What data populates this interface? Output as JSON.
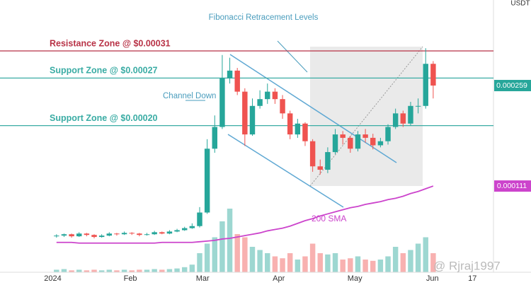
{
  "chart_data": {
    "type": "candlestick",
    "currency": "USDT",
    "annotations": {
      "fib": "Fibonacci Retracement Levels",
      "channel": "Channel Down",
      "sma": "200 SMA",
      "watermark": "@ Rjraj1997"
    },
    "categories": [
      null,
      null,
      null,
      null,
      null,
      null,
      null,
      null,
      null,
      null,
      null,
      null,
      null,
      null,
      null,
      null,
      null,
      null,
      null,
      null,
      null,
      null,
      null,
      null,
      null,
      null,
      null,
      null,
      null,
      null,
      null,
      null,
      null,
      null,
      null,
      null,
      null,
      null,
      null,
      null,
      null,
      null,
      null,
      null,
      null,
      null,
      null,
      null,
      null,
      null,
      null
    ],
    "xlim": [
      -7.5,
      58
    ],
    "xticks": [
      {
        "value": -0.5,
        "label": "2024"
      },
      {
        "value": 9.8,
        "label": "Feb"
      },
      {
        "value": 19.4,
        "label": "Mar"
      },
      {
        "value": 29.5,
        "label": "Apr"
      },
      {
        "value": 39.6,
        "label": "May"
      },
      {
        "value": 49.9,
        "label": "Jun"
      },
      {
        "value": 55.2,
        "label": "17"
      }
    ],
    "ylim": [
      -1.6e-05,
      0.000385
    ],
    "up_color": "#26a69a",
    "down_color": "#ef5350",
    "open": [
      3.7e-05,
      3.8e-05,
      4e-05,
      3.7e-05,
      4.1e-05,
      3.9e-05,
      3.6e-05,
      3.8e-05,
      4.1e-05,
      4e-05,
      4.2e-05,
      4.1e-05,
      3.9e-05,
      4e-05,
      4.3e-05,
      4.1e-05,
      4.4e-05,
      4.6e-05,
      4.9e-05,
      5.2e-05,
      7.2e-05,
      0.000166,
      0.000198,
      0.00027,
      0.000281,
      0.00025,
      0.000187,
      0.000229,
      0.000239,
      0.00025,
      0.000239,
      0.000218,
      0.000187,
      0.000203,
      0.000177,
      0.00014,
      0.000135,
      0.000161,
      0.000187,
      0.000182,
      0.000166,
      0.000187,
      0.000182,
      0.000171,
      0.000177,
      0.000198,
      0.000218,
      0.000203,
      0.000229,
      0.000229,
      0.000291
    ],
    "high": [
      4e-05,
      4.1e-05,
      4.1e-05,
      4.3e-05,
      4.2e-05,
      4e-05,
      4e-05,
      4.3e-05,
      4.2e-05,
      4.4e-05,
      4.3e-05,
      4.2e-05,
      4.2e-05,
      4.5e-05,
      4.4e-05,
      4.6e-05,
      4.8e-05,
      5.1e-05,
      5.6e-05,
      8e-05,
      0.00018,
      0.000215,
      0.000304,
      0.0003,
      0.000285,
      0.000255,
      0.00024,
      0.000252,
      0.000262,
      0.000255,
      0.000245,
      0.000222,
      0.00021,
      0.000205,
      0.00018,
      0.00015,
      0.000168,
      0.000195,
      0.000192,
      0.000185,
      0.000192,
      0.000195,
      0.000188,
      0.000182,
      0.000202,
      0.000225,
      0.000222,
      0.000235,
      0.00024,
      0.000314,
      0.000295
    ],
    "low": [
      3.5e-05,
      3.6e-05,
      3.5e-05,
      3.6e-05,
      3.7e-05,
      3.4e-05,
      3.5e-05,
      3.7e-05,
      3.8e-05,
      3.9e-05,
      3.9e-05,
      3.7e-05,
      3.8e-05,
      3.9e-05,
      4e-05,
      4e-05,
      4.3e-05,
      4.5e-05,
      4.8e-05,
      5e-05,
      7e-05,
      0.00016,
      0.000195,
      0.000262,
      0.000245,
      0.00017,
      0.000185,
      0.000225,
      0.000232,
      0.000232,
      0.00021,
      0.00018,
      0.000182,
      0.00017,
      0.000132,
      0.000128,
      0.00013,
      0.000158,
      0.000172,
      0.00016,
      0.000162,
      0.000175,
      0.000165,
      0.000168,
      0.000172,
      0.000195,
      0.000198,
      0.0002,
      0.000218,
      0.000225,
      0.00024
    ],
    "close": [
      3.8e-05,
      4e-05,
      3.7e-05,
      4.1e-05,
      3.9e-05,
      3.6e-05,
      3.8e-05,
      4.1e-05,
      4e-05,
      4.2e-05,
      4.1e-05,
      3.9e-05,
      4e-05,
      4.3e-05,
      4.1e-05,
      4.4e-05,
      4.6e-05,
      4.9e-05,
      5.2e-05,
      7.2e-05,
      0.000166,
      0.000198,
      0.00027,
      0.000281,
      0.00025,
      0.000187,
      0.000229,
      0.000239,
      0.00025,
      0.000239,
      0.000218,
      0.000187,
      0.000203,
      0.000177,
      0.00014,
      0.000135,
      0.000161,
      0.000187,
      0.000182,
      0.000166,
      0.000187,
      0.000182,
      0.000171,
      0.000177,
      0.000198,
      0.000218,
      0.000203,
      0.000229,
      0.000229,
      0.000291,
      0.000259
    ],
    "sma": {
      "color": "#cc44cc",
      "values": [
        2.8e-05,
        2.8e-05,
        2.8e-05,
        2.7e-05,
        2.7e-05,
        2.7e-05,
        2.7e-05,
        2.7e-05,
        2.7e-05,
        2.7e-05,
        2.7e-05,
        2.7e-05,
        2.7e-05,
        2.7e-05,
        2.8e-05,
        2.8e-05,
        2.8e-05,
        2.8e-05,
        2.8e-05,
        2.9e-05,
        3e-05,
        3.1e-05,
        3.3e-05,
        3.4e-05,
        3.6e-05,
        3.8e-05,
        4e-05,
        4.2e-05,
        4.5e-05,
        4.7e-05,
        4.9e-05,
        5.2e-05,
        5.6e-05,
        6e-05,
        6.3e-05,
        6.7e-05,
        7e-05,
        7.3e-05,
        7.6e-05,
        7.9e-05,
        8.1e-05,
        8.4e-05,
        8.6e-05,
        8.8e-05,
        9.1e-05,
        9.3e-05,
        9.6e-05,
        0.0001,
        0.000103,
        0.000107,
        0.000111
      ]
    },
    "volume": [
      4,
      5,
      3,
      4,
      3,
      4,
      3,
      4,
      3,
      4,
      3,
      4,
      4,
      5,
      4,
      5,
      6,
      8,
      12,
      30,
      45,
      55,
      80,
      100,
      60,
      55,
      40,
      35,
      30,
      25,
      22,
      30,
      20,
      25,
      45,
      30,
      28,
      30,
      20,
      22,
      25,
      20,
      18,
      20,
      25,
      40,
      30,
      35,
      45,
      55,
      30
    ],
    "volume_ylim": [
      0,
      100
    ],
    "levels": [
      {
        "label": "Resistance Zone @ $0.00031",
        "value": 0.00031,
        "color": "#b83246"
      },
      {
        "label": "Support Zone @ $0.00027",
        "value": 0.00027,
        "color": "#3aaca4"
      },
      {
        "label": "Support Zone @ $0.00020",
        "value": 0.0002,
        "color": "#3aaca4"
      }
    ],
    "price_tags": [
      {
        "value": 0.000259,
        "label": "0.000259",
        "color": "#26a69a"
      },
      {
        "value": 0.000111,
        "label": "0.000111",
        "color": "#cc44cc"
      }
    ]
  }
}
